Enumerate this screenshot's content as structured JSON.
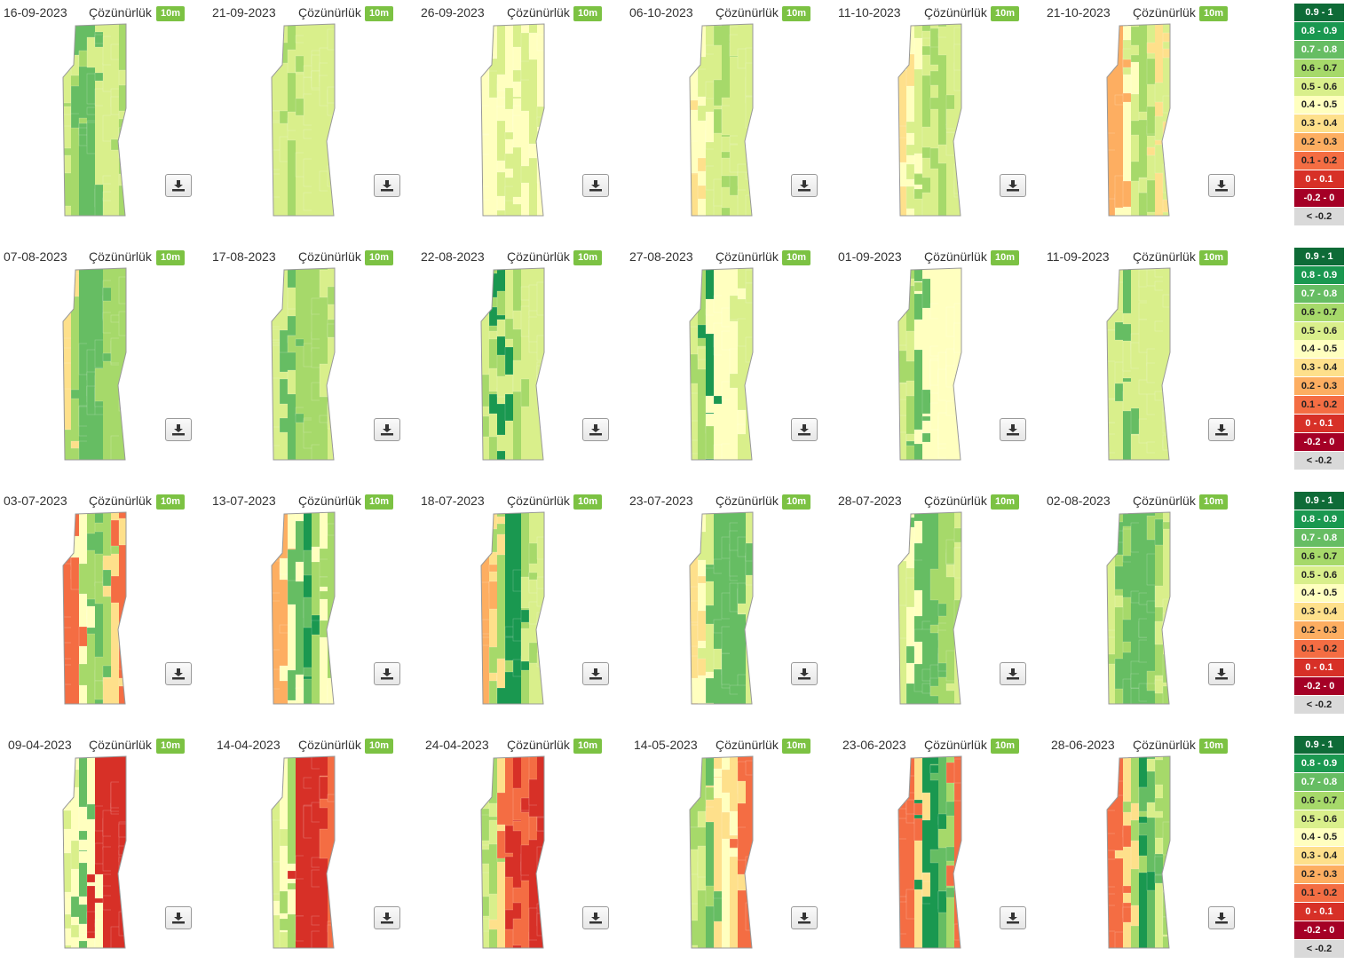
{
  "resolution_label": "Çözünürlük",
  "resolution_badge": "10m",
  "download_icon": "download-icon",
  "legend": [
    {
      "label": "0.9 - 1",
      "color": "#0e6b37",
      "text": "#ffffff"
    },
    {
      "label": "0.8 - 0.9",
      "color": "#1a9850",
      "text": "#ffffff"
    },
    {
      "label": "0.7 - 0.8",
      "color": "#66bd63",
      "text": "#ffffff"
    },
    {
      "label": "0.6 - 0.7",
      "color": "#a6d96a",
      "text": "#222222"
    },
    {
      "label": "0.5 - 0.6",
      "color": "#d9ef8b",
      "text": "#222222"
    },
    {
      "label": "0.4 - 0.5",
      "color": "#ffffbf",
      "text": "#222222"
    },
    {
      "label": "0.3 - 0.4",
      "color": "#fee08b",
      "text": "#222222"
    },
    {
      "label": "0.2 - 0.3",
      "color": "#fdae61",
      "text": "#222222"
    },
    {
      "label": "0.1 - 0.2",
      "color": "#f46d43",
      "text": "#222222"
    },
    {
      "label": "0 - 0.1",
      "color": "#d73027",
      "text": "#ffffff"
    },
    {
      "label": "-0.2 - 0",
      "color": "#a50026",
      "text": "#ffffff"
    },
    {
      "label": "< -0.2",
      "color": "#d9d9d9",
      "text": "#222222"
    }
  ],
  "rows": [
    {
      "cards": [
        {
          "date": "16-09-2023",
          "theme": "g1"
        },
        {
          "date": "21-09-2023",
          "theme": "g2"
        },
        {
          "date": "26-09-2023",
          "theme": "y1"
        },
        {
          "date": "06-10-2023",
          "theme": "y2"
        },
        {
          "date": "11-10-2023",
          "theme": "g3"
        },
        {
          "date": "21-10-2023",
          "theme": "o1"
        }
      ]
    },
    {
      "cards": [
        {
          "date": "07-08-2023",
          "theme": "g4"
        },
        {
          "date": "17-08-2023",
          "theme": "g5"
        },
        {
          "date": "22-08-2023",
          "theme": "g6"
        },
        {
          "date": "27-08-2023",
          "theme": "g7"
        },
        {
          "date": "01-09-2023",
          "theme": "y3"
        },
        {
          "date": "11-09-2023",
          "theme": "g8"
        }
      ]
    },
    {
      "cards": [
        {
          "date": "03-07-2023",
          "theme": "r1"
        },
        {
          "date": "13-07-2023",
          "theme": "g9"
        },
        {
          "date": "18-07-2023",
          "theme": "g10"
        },
        {
          "date": "23-07-2023",
          "theme": "g11"
        },
        {
          "date": "28-07-2023",
          "theme": "g12"
        },
        {
          "date": "02-08-2023",
          "theme": "g13"
        }
      ]
    },
    {
      "cards": [
        {
          "date": "09-04-2023",
          "theme": "r2"
        },
        {
          "date": "14-04-2023",
          "theme": "r3"
        },
        {
          "date": "24-04-2023",
          "theme": "r4"
        },
        {
          "date": "14-05-2023",
          "theme": "y4"
        },
        {
          "date": "23-06-2023",
          "theme": "g14"
        },
        {
          "date": "28-06-2023",
          "theme": "g15"
        }
      ]
    }
  ]
}
